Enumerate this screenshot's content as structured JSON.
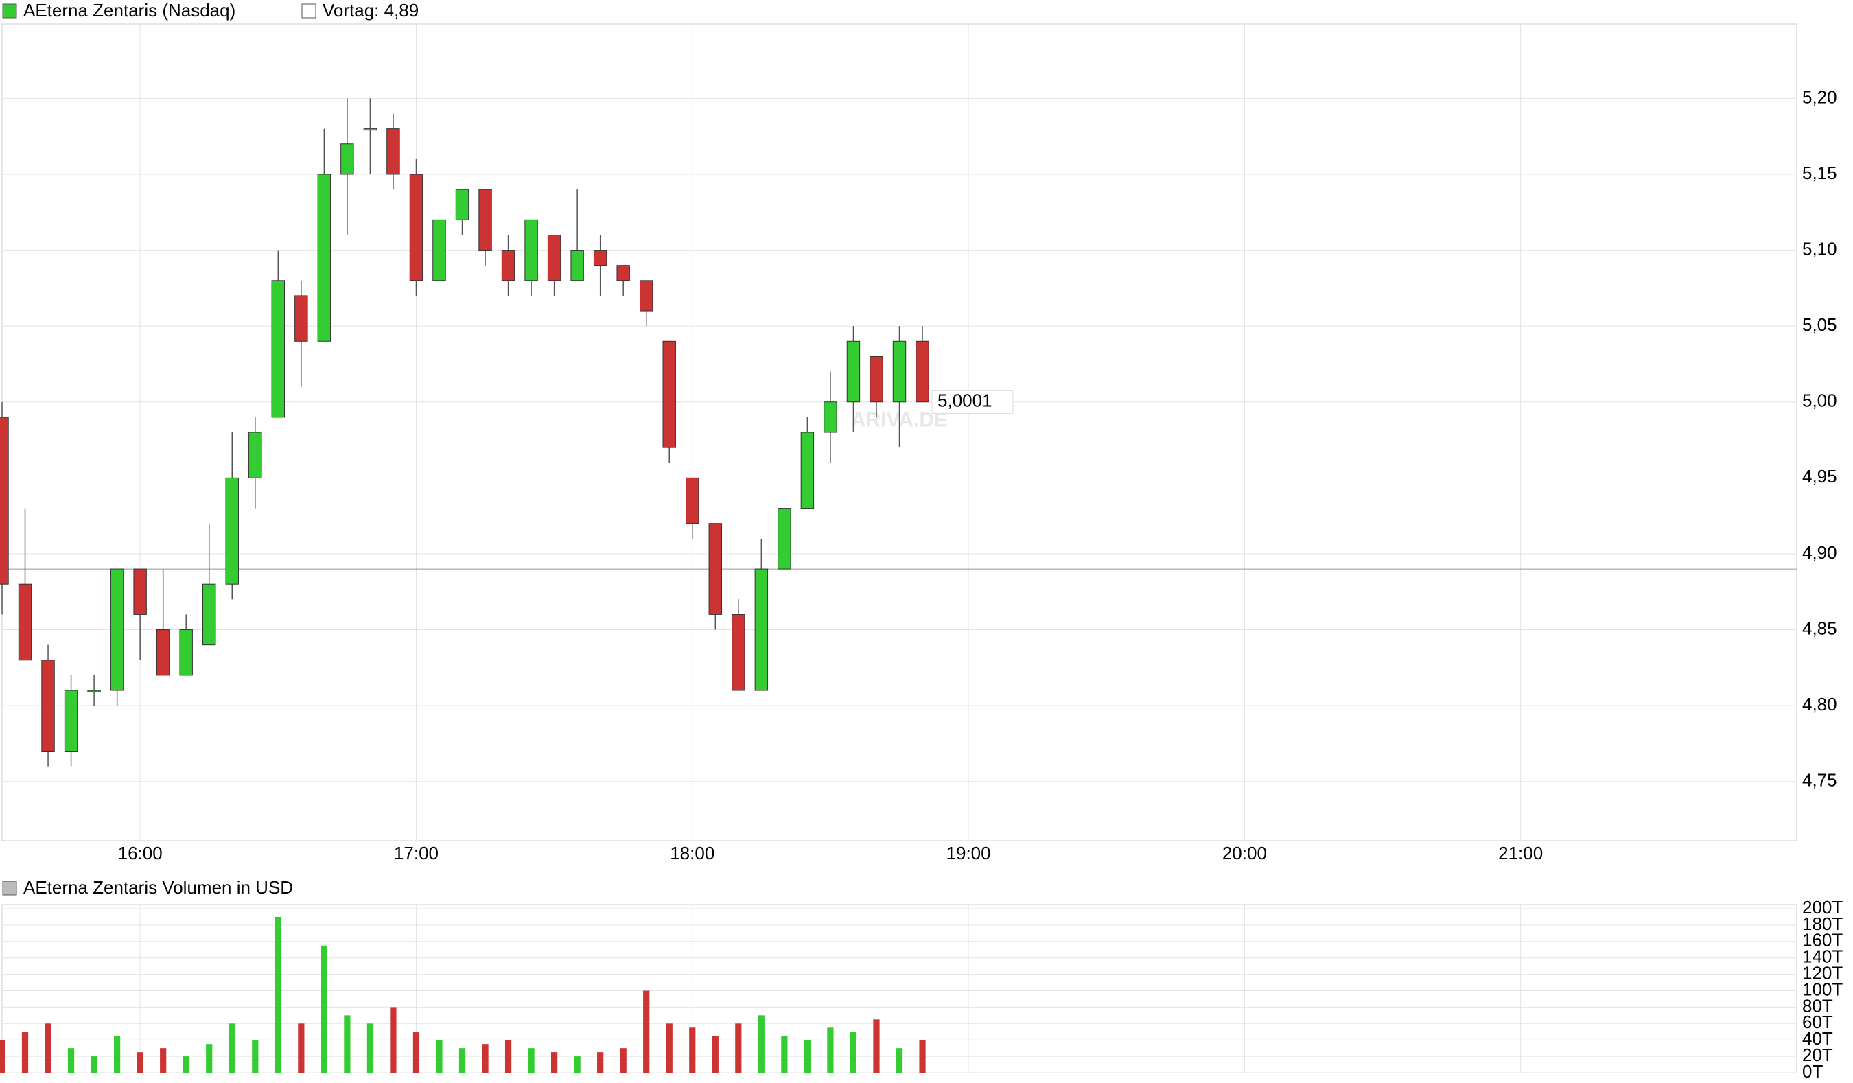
{
  "chart_data": [
    {
      "type": "candlestick",
      "name": "AEterna Zentaris (Nasdaq)",
      "watermark": "ARIVA.DE",
      "up_color": "#33cc33",
      "down_color": "#cc3333",
      "grid": true,
      "prev_close": {
        "value": 4.89,
        "label": "Vortag: 4,89"
      },
      "last": {
        "value": 5.0001,
        "label": "5,0001"
      },
      "x": [
        "15:30",
        "15:35",
        "15:40",
        "15:45",
        "15:50",
        "15:55",
        "16:00",
        "16:05",
        "16:10",
        "16:15",
        "16:20",
        "16:25",
        "16:30",
        "16:35",
        "16:40",
        "16:45",
        "16:50",
        "16:55",
        "17:00",
        "17:05",
        "17:10",
        "17:15",
        "17:20",
        "17:25",
        "17:30",
        "17:35",
        "17:40",
        "17:45",
        "17:50",
        "17:55",
        "18:00",
        "18:05",
        "18:10",
        "18:15",
        "18:20",
        "18:25",
        "18:30",
        "18:35",
        "18:40",
        "18:45",
        "18:50"
      ],
      "open": [
        4.99,
        4.88,
        4.83,
        4.77,
        4.81,
        4.81,
        4.89,
        4.85,
        4.82,
        4.84,
        4.88,
        4.95,
        4.99,
        5.07,
        5.04,
        5.15,
        5.18,
        5.18,
        5.15,
        5.08,
        5.12,
        5.14,
        5.1,
        5.08,
        5.11,
        5.08,
        5.1,
        5.09,
        5.08,
        5.04,
        4.95,
        4.92,
        4.86,
        4.81,
        4.89,
        4.93,
        4.98,
        5.0,
        5.03,
        5.0,
        5.04
      ],
      "high": [
        5.0,
        4.93,
        4.84,
        4.82,
        4.82,
        4.89,
        4.89,
        4.89,
        4.86,
        4.92,
        4.98,
        4.99,
        5.1,
        5.08,
        5.18,
        5.2,
        5.2,
        5.19,
        5.16,
        5.12,
        5.14,
        5.14,
        5.11,
        5.12,
        5.11,
        5.14,
        5.11,
        5.09,
        5.08,
        5.04,
        4.95,
        4.92,
        4.87,
        4.91,
        4.93,
        4.99,
        5.02,
        5.05,
        5.03,
        5.05,
        5.05
      ],
      "low": [
        4.86,
        4.83,
        4.76,
        4.76,
        4.8,
        4.8,
        4.83,
        4.82,
        4.82,
        4.84,
        4.87,
        4.93,
        4.99,
        5.01,
        5.04,
        5.11,
        5.15,
        5.14,
        5.07,
        5.08,
        5.11,
        5.09,
        5.07,
        5.07,
        5.07,
        5.08,
        5.07,
        5.07,
        5.05,
        4.96,
        4.91,
        4.85,
        4.81,
        4.81,
        4.89,
        4.93,
        4.96,
        4.98,
        4.99,
        4.97,
        5.0
      ],
      "close": [
        4.88,
        4.83,
        4.77,
        4.81,
        4.81,
        4.89,
        4.86,
        4.82,
        4.85,
        4.88,
        4.95,
        4.98,
        5.08,
        5.04,
        5.15,
        5.17,
        5.18,
        5.15,
        5.08,
        5.12,
        5.14,
        5.1,
        5.08,
        5.12,
        5.08,
        5.1,
        5.09,
        5.08,
        5.06,
        4.97,
        4.92,
        4.86,
        4.81,
        4.89,
        4.93,
        4.98,
        5.0,
        5.04,
        5.0,
        5.04,
        5.0
      ],
      "xlim": [
        "15:30",
        "22:00"
      ],
      "xticks": [
        "16:00",
        "17:00",
        "18:00",
        "19:00",
        "20:00",
        "21:00"
      ],
      "ylim": [
        4.711,
        5.249
      ],
      "yticks": [
        {
          "value": 4.75,
          "label": "4,75"
        },
        {
          "value": 4.8,
          "label": "4,80"
        },
        {
          "value": 4.85,
          "label": "4,85"
        },
        {
          "value": 4.9,
          "label": "4,90"
        },
        {
          "value": 4.95,
          "label": "4,95"
        },
        {
          "value": 5.0,
          "label": "5,00"
        },
        {
          "value": 5.05,
          "label": "5,05"
        },
        {
          "value": 5.1,
          "label": "5,10"
        },
        {
          "value": 5.15,
          "label": "5,15"
        },
        {
          "value": 5.2,
          "label": "5,20"
        }
      ]
    },
    {
      "type": "bar",
      "title": "AEterna Zentaris Volumen in USD",
      "grid": true,
      "legend_color": "#bbbbbb",
      "values": [
        40,
        50,
        60,
        30,
        20,
        45,
        25,
        30,
        20,
        35,
        60,
        40,
        190,
        60,
        155,
        70,
        60,
        80,
        50,
        40,
        30,
        35,
        40,
        30,
        25,
        20,
        25,
        30,
        100,
        60,
        55,
        45,
        60,
        70,
        45,
        40,
        55,
        50,
        65,
        30,
        40
      ],
      "ylim": [
        0,
        200
      ],
      "yticks": [
        {
          "value": 0,
          "label": "0T"
        },
        {
          "value": 20,
          "label": "20T"
        },
        {
          "value": 40,
          "label": "40T"
        },
        {
          "value": 60,
          "label": "60T"
        },
        {
          "value": 80,
          "label": "80T"
        },
        {
          "value": 100,
          "label": "100T"
        },
        {
          "value": 120,
          "label": "120T"
        },
        {
          "value": 140,
          "label": "140T"
        },
        {
          "value": 160,
          "label": "160T"
        },
        {
          "value": 180,
          "label": "180T"
        },
        {
          "value": 200,
          "label": "200T"
        }
      ]
    }
  ]
}
